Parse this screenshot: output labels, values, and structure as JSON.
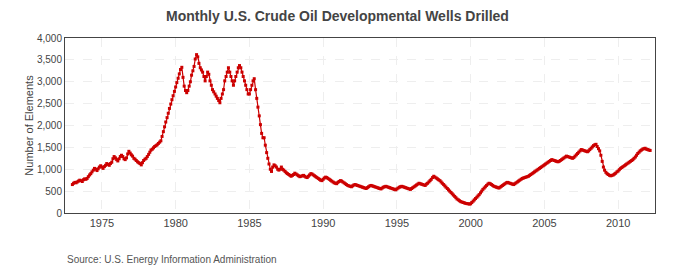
{
  "chart_data": {
    "type": "line",
    "title": "Monthly U.S. Crude Oil Developmental Wells Drilled",
    "ylabel": "Number of Elements",
    "annotations": [
      "Source: U.S. Energy Information Administration"
    ],
    "color": "#cc0000",
    "marker": "square",
    "grid": true,
    "xlim": [
      1972.5,
      2012.5
    ],
    "xticks": [
      1975,
      1980,
      1985,
      1990,
      1995,
      2000,
      2005,
      2010
    ],
    "ylim": [
      0,
      4000
    ],
    "yticks": [
      0,
      500,
      {
        "value": 1000,
        "label": "1,000"
      },
      {
        "value": 1500,
        "label": "1,500"
      },
      {
        "value": 2000,
        "label": "2,000"
      },
      {
        "value": 2500,
        "label": "2,500"
      },
      {
        "value": 3000,
        "label": "3,000"
      },
      {
        "value": 3500,
        "label": "3,500"
      },
      {
        "value": 4000,
        "label": "4,000"
      }
    ],
    "x": [
      1973.0,
      1973.08,
      1973.17,
      1973.25,
      1973.33,
      1973.42,
      1973.5,
      1973.58,
      1973.67,
      1973.75,
      1973.83,
      1973.92,
      1974.0,
      1974.08,
      1974.17,
      1974.25,
      1974.33,
      1974.42,
      1974.5,
      1974.58,
      1974.67,
      1974.75,
      1974.83,
      1974.92,
      1975.0,
      1975.08,
      1975.17,
      1975.25,
      1975.33,
      1975.42,
      1975.5,
      1975.58,
      1975.67,
      1975.75,
      1975.83,
      1975.92,
      1976.0,
      1976.08,
      1976.17,
      1976.25,
      1976.33,
      1976.42,
      1976.5,
      1976.58,
      1976.67,
      1976.75,
      1976.83,
      1976.92,
      1977.0,
      1977.08,
      1977.17,
      1977.25,
      1977.33,
      1977.42,
      1977.5,
      1977.58,
      1977.67,
      1977.75,
      1977.83,
      1977.92,
      1978.0,
      1978.08,
      1978.17,
      1978.25,
      1978.33,
      1978.42,
      1978.5,
      1978.58,
      1978.67,
      1978.75,
      1978.83,
      1978.92,
      1979.0,
      1979.08,
      1979.17,
      1979.25,
      1979.33,
      1979.42,
      1979.5,
      1979.58,
      1979.67,
      1979.75,
      1979.83,
      1979.92,
      1980.0,
      1980.08,
      1980.17,
      1980.25,
      1980.33,
      1980.42,
      1980.5,
      1980.58,
      1980.67,
      1980.75,
      1980.83,
      1980.92,
      1981.0,
      1981.08,
      1981.17,
      1981.25,
      1981.33,
      1981.42,
      1981.5,
      1981.58,
      1981.67,
      1981.75,
      1981.83,
      1981.92,
      1982.0,
      1982.08,
      1982.17,
      1982.25,
      1982.33,
      1982.42,
      1982.5,
      1982.58,
      1982.67,
      1982.75,
      1982.83,
      1982.92,
      1983.0,
      1983.08,
      1983.17,
      1983.25,
      1983.33,
      1983.42,
      1983.5,
      1983.58,
      1983.67,
      1983.75,
      1983.83,
      1983.92,
      1984.0,
      1984.08,
      1984.17,
      1984.25,
      1984.33,
      1984.42,
      1984.5,
      1984.58,
      1984.67,
      1984.75,
      1984.83,
      1984.92,
      1985.0,
      1985.08,
      1985.17,
      1985.25,
      1985.33,
      1985.42,
      1985.5,
      1985.58,
      1985.67,
      1985.75,
      1985.83,
      1985.92,
      1986.0,
      1986.08,
      1986.17,
      1986.25,
      1986.33,
      1986.42,
      1986.5,
      1986.58,
      1986.67,
      1986.75,
      1986.83,
      1986.92,
      1987.0,
      1987.08,
      1987.17,
      1987.25,
      1987.33,
      1987.42,
      1987.5,
      1987.58,
      1987.67,
      1987.75,
      1987.83,
      1987.92,
      1988.0,
      1988.08,
      1988.17,
      1988.25,
      1988.33,
      1988.42,
      1988.5,
      1988.58,
      1988.67,
      1988.75,
      1988.83,
      1988.92,
      1989.0,
      1989.08,
      1989.17,
      1989.25,
      1989.33,
      1989.42,
      1989.5,
      1989.58,
      1989.67,
      1989.75,
      1989.83,
      1989.92,
      1990.0,
      1990.08,
      1990.17,
      1990.25,
      1990.33,
      1990.42,
      1990.5,
      1990.58,
      1990.67,
      1990.75,
      1990.83,
      1990.92,
      1991.0,
      1991.08,
      1991.17,
      1991.25,
      1991.33,
      1991.42,
      1991.5,
      1991.58,
      1991.67,
      1991.75,
      1991.83,
      1991.92,
      1992.0,
      1992.08,
      1992.17,
      1992.25,
      1992.33,
      1992.42,
      1992.5,
      1992.58,
      1992.67,
      1992.75,
      1992.83,
      1992.92,
      1993.0,
      1993.08,
      1993.17,
      1993.25,
      1993.33,
      1993.42,
      1993.5,
      1993.58,
      1993.67,
      1993.75,
      1993.83,
      1993.92,
      1994.0,
      1994.08,
      1994.17,
      1994.25,
      1994.33,
      1994.42,
      1994.5,
      1994.58,
      1994.67,
      1994.75,
      1994.83,
      1994.92,
      1995.0,
      1995.08,
      1995.17,
      1995.25,
      1995.33,
      1995.42,
      1995.5,
      1995.58,
      1995.67,
      1995.75,
      1995.83,
      1995.92,
      1996.0,
      1996.08,
      1996.17,
      1996.25,
      1996.33,
      1996.42,
      1996.5,
      1996.58,
      1996.67,
      1996.75,
      1996.83,
      1996.92,
      1997.0,
      1997.08,
      1997.17,
      1997.25,
      1997.33,
      1997.42,
      1997.5,
      1997.58,
      1997.67,
      1997.75,
      1997.83,
      1997.92,
      1998.0,
      1998.08,
      1998.17,
      1998.25,
      1998.33,
      1998.42,
      1998.5,
      1998.58,
      1998.67,
      1998.75,
      1998.83,
      1998.92,
      1999.0,
      1999.08,
      1999.17,
      1999.25,
      1999.33,
      1999.42,
      1999.5,
      1999.58,
      1999.67,
      1999.75,
      1999.83,
      1999.92,
      2000.0,
      2000.08,
      2000.17,
      2000.25,
      2000.33,
      2000.42,
      2000.5,
      2000.58,
      2000.67,
      2000.75,
      2000.83,
      2000.92,
      2001.0,
      2001.08,
      2001.17,
      2001.25,
      2001.33,
      2001.42,
      2001.5,
      2001.58,
      2001.67,
      2001.75,
      2001.83,
      2001.92,
      2002.0,
      2002.08,
      2002.17,
      2002.25,
      2002.33,
      2002.42,
      2002.5,
      2002.58,
      2002.67,
      2002.75,
      2002.83,
      2002.92,
      2003.0,
      2003.08,
      2003.17,
      2003.25,
      2003.33,
      2003.42,
      2003.5,
      2003.58,
      2003.67,
      2003.75,
      2003.83,
      2003.92,
      2004.0,
      2004.08,
      2004.17,
      2004.25,
      2004.33,
      2004.42,
      2004.5,
      2004.58,
      2004.67,
      2004.75,
      2004.83,
      2004.92,
      2005.0,
      2005.08,
      2005.17,
      2005.25,
      2005.33,
      2005.42,
      2005.5,
      2005.58,
      2005.67,
      2005.75,
      2005.83,
      2005.92,
      2006.0,
      2006.08,
      2006.17,
      2006.25,
      2006.33,
      2006.42,
      2006.5,
      2006.58,
      2006.67,
      2006.75,
      2006.83,
      2006.92,
      2007.0,
      2007.08,
      2007.17,
      2007.25,
      2007.33,
      2007.42,
      2007.5,
      2007.58,
      2007.67,
      2007.75,
      2007.83,
      2007.92,
      2008.0,
      2008.08,
      2008.17,
      2008.25,
      2008.33,
      2008.42,
      2008.5,
      2008.58,
      2008.67,
      2008.75,
      2008.83,
      2008.92,
      2009.0,
      2009.08,
      2009.17,
      2009.25,
      2009.33,
      2009.42,
      2009.5,
      2009.58,
      2009.67,
      2009.75,
      2009.83,
      2009.92,
      2010.0,
      2010.08,
      2010.17,
      2010.25,
      2010.33,
      2010.42,
      2010.5,
      2010.58,
      2010.67,
      2010.75,
      2010.83,
      2010.92,
      2011.0,
      2011.08,
      2011.17,
      2011.25,
      2011.33,
      2011.42,
      2011.5,
      2011.58,
      2011.67,
      2011.75,
      2011.83,
      2011.92,
      2012.0,
      2012.08,
      2012.17
    ],
    "values": [
      650,
      680,
      700,
      690,
      710,
      730,
      750,
      740,
      720,
      760,
      780,
      770,
      790,
      830,
      870,
      900,
      940,
      980,
      1020,
      1000,
      970,
      1010,
      1050,
      1080,
      1050,
      1020,
      1060,
      1090,
      1130,
      1110,
      1090,
      1130,
      1160,
      1240,
      1290,
      1260,
      1220,
      1190,
      1240,
      1290,
      1320,
      1290,
      1240,
      1220,
      1260,
      1350,
      1410,
      1370,
      1330,
      1300,
      1250,
      1230,
      1200,
      1170,
      1150,
      1130,
      1100,
      1150,
      1200,
      1230,
      1250,
      1290,
      1340,
      1390,
      1440,
      1460,
      1490,
      1520,
      1540,
      1560,
      1590,
      1620,
      1650,
      1750,
      1860,
      1970,
      2080,
      2180,
      2280,
      2390,
      2490,
      2590,
      2680,
      2780,
      2880,
      2980,
      3080,
      3180,
      3280,
      3330,
      3100,
      2900,
      2800,
      2750,
      2800,
      2900,
      3000,
      3150,
      3250,
      3350,
      3520,
      3620,
      3570,
      3420,
      3320,
      3270,
      3220,
      3120,
      3020,
      3120,
      3220,
      3170,
      3020,
      2920,
      2820,
      2770,
      2720,
      2670,
      2620,
      2570,
      2520,
      2620,
      2720,
      2820,
      3020,
      3120,
      3220,
      3320,
      3220,
      3120,
      3020,
      2920,
      3020,
      3120,
      3220,
      3320,
      3370,
      3320,
      3220,
      3120,
      3020,
      2920,
      2820,
      2720,
      2720,
      2820,
      2920,
      3020,
      3070,
      2820,
      2620,
      2420,
      2220,
      2020,
      1820,
      1720,
      1720,
      1550,
      1380,
      1250,
      1120,
      1000,
      950,
      1050,
      1100,
      1080,
      1050,
      1000,
      980,
      1000,
      1050,
      1000,
      980,
      950,
      920,
      900,
      880,
      860,
      840,
      860,
      880,
      910,
      890,
      870,
      850,
      830,
      840,
      850,
      860,
      840,
      820,
      810,
      840,
      870,
      900,
      890,
      870,
      850,
      830,
      810,
      790,
      770,
      750,
      740,
      770,
      800,
      820,
      810,
      790,
      770,
      750,
      730,
      710,
      690,
      680,
      670,
      700,
      720,
      740,
      730,
      710,
      690,
      670,
      650,
      630,
      620,
      610,
      600,
      620,
      640,
      650,
      640,
      630,
      620,
      610,
      600,
      590,
      580,
      570,
      560,
      580,
      600,
      620,
      630,
      620,
      610,
      600,
      590,
      580,
      570,
      560,
      550,
      570,
      590,
      600,
      610,
      600,
      590,
      580,
      570,
      560,
      550,
      540,
      530,
      550,
      570,
      590,
      600,
      610,
      600,
      590,
      580,
      570,
      560,
      550,
      540,
      560,
      580,
      600,
      620,
      640,
      660,
      680,
      670,
      660,
      650,
      640,
      630,
      660,
      680,
      710,
      740,
      770,
      810,
      840,
      820,
      800,
      780,
      760,
      740,
      710,
      680,
      650,
      620,
      590,
      560,
      530,
      500,
      470,
      440,
      410,
      380,
      350,
      320,
      300,
      280,
      260,
      250,
      240,
      230,
      220,
      215,
      210,
      205,
      210,
      240,
      270,
      300,
      330,
      360,
      390,
      420,
      460,
      500,
      540,
      570,
      600,
      630,
      660,
      680,
      670,
      650,
      630,
      610,
      600,
      590,
      580,
      570,
      590,
      610,
      630,
      650,
      670,
      690,
      700,
      690,
      680,
      670,
      660,
      650,
      670,
      690,
      710,
      730,
      750,
      770,
      790,
      800,
      810,
      820,
      830,
      840,
      860,
      880,
      900,
      920,
      940,
      960,
      980,
      1000,
      1020,
      1040,
      1060,
      1080,
      1100,
      1120,
      1140,
      1160,
      1180,
      1200,
      1220,
      1210,
      1200,
      1190,
      1180,
      1170,
      1180,
      1200,
      1220,
      1240,
      1260,
      1280,
      1300,
      1290,
      1280,
      1270,
      1260,
      1250,
      1270,
      1300,
      1330,
      1360,
      1390,
      1420,
      1450,
      1440,
      1430,
      1420,
      1410,
      1400,
      1420,
      1450,
      1480,
      1510,
      1540,
      1560,
      1570,
      1520,
      1470,
      1420,
      1320,
      1180,
      1050,
      980,
      930,
      900,
      880,
      860,
      850,
      860,
      870,
      890,
      910,
      940,
      960,
      990,
      1020,
      1040,
      1060,
      1080,
      1100,
      1120,
      1140,
      1160,
      1180,
      1200,
      1220,
      1250,
      1280,
      1320,
      1360,
      1390,
      1420,
      1440,
      1460,
      1470,
      1480,
      1460,
      1450,
      1440,
      1430
    ]
  }
}
